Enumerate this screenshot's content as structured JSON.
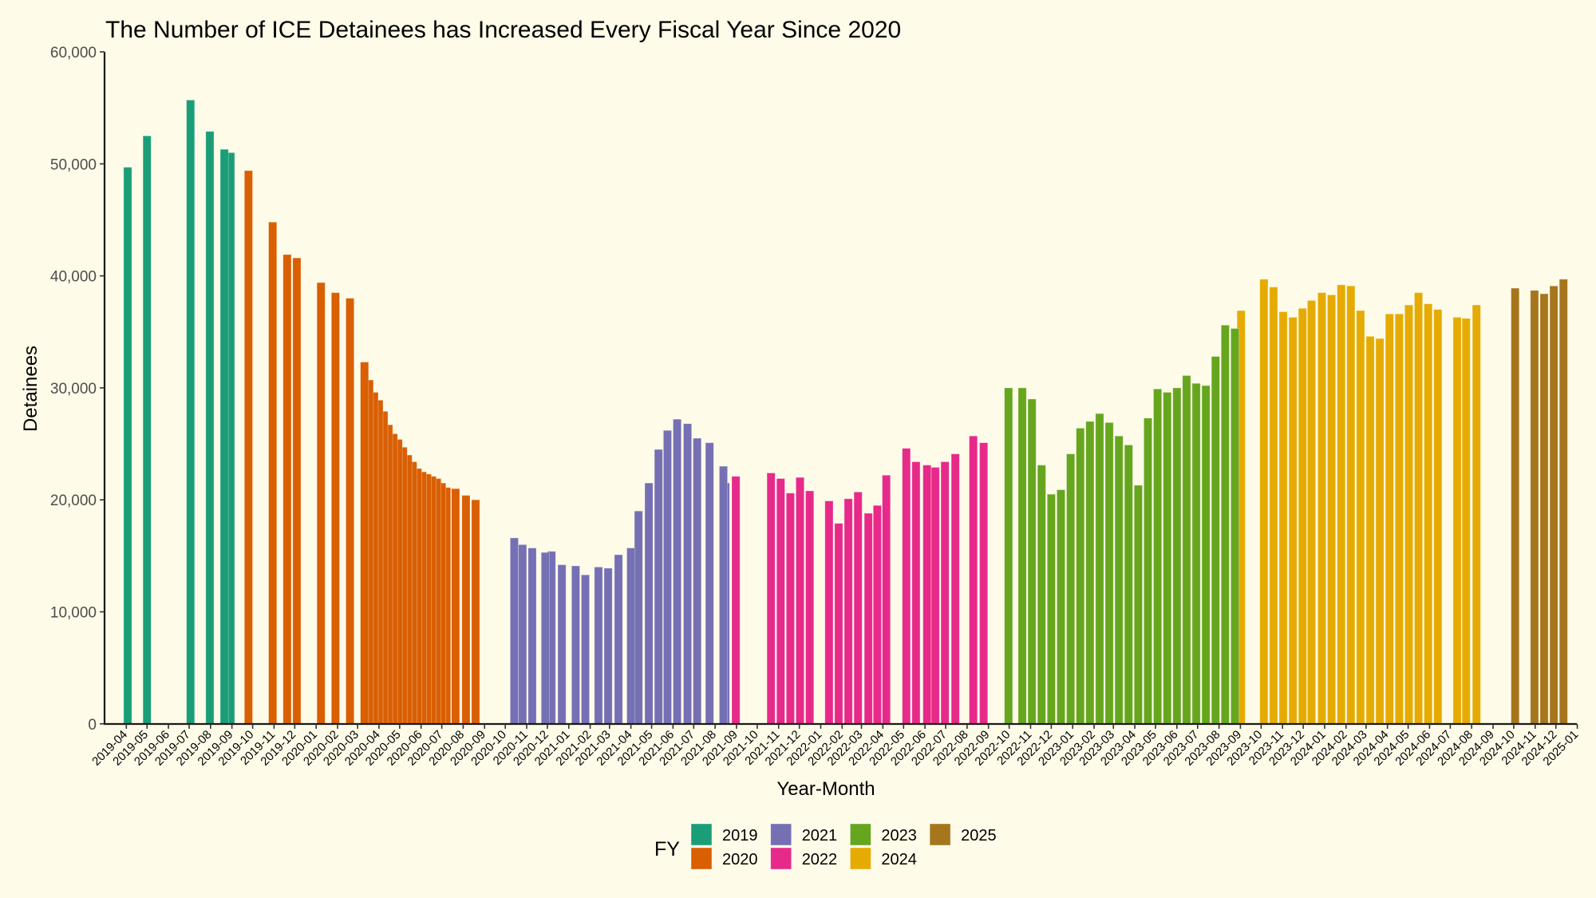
{
  "chart_data": {
    "type": "bar",
    "title": "The Number of ICE Detainees has Increased Every Fiscal Year Since 2020",
    "xlabel": "Year-Month",
    "ylabel": "Detainees",
    "ylim": [
      0,
      60000
    ],
    "yticks": [
      0,
      10000,
      20000,
      30000,
      40000,
      50000,
      60000
    ],
    "ytick_labels": [
      "0",
      "10,000",
      "20,000",
      "30,000",
      "40,000",
      "50,000",
      "60,000"
    ],
    "xlim": [
      "2019-03-02",
      "2025-01-01"
    ],
    "xtick_labels": [
      "2019-04",
      "2019-05",
      "2019-06",
      "2019-07",
      "2019-08",
      "2019-09",
      "2019-10",
      "2019-11",
      "2019-12",
      "2020-01",
      "2020-02",
      "2020-03",
      "2020-04",
      "2020-05",
      "2020-06",
      "2020-07",
      "2020-08",
      "2020-09",
      "2020-10",
      "2020-11",
      "2020-12",
      "2021-01",
      "2021-02",
      "2021-03",
      "2021-04",
      "2021-05",
      "2021-06",
      "2021-07",
      "2021-08",
      "2021-09",
      "2021-10",
      "2021-11",
      "2021-12",
      "2022-01",
      "2022-02",
      "2022-03",
      "2022-04",
      "2022-05",
      "2022-06",
      "2022-07",
      "2022-08",
      "2022-09",
      "2022-10",
      "2022-11",
      "2022-12",
      "2023-01",
      "2023-02",
      "2023-03",
      "2023-04",
      "2023-05",
      "2023-06",
      "2023-07",
      "2023-08",
      "2023-09",
      "2023-10",
      "2023-11",
      "2023-12",
      "2024-01",
      "2024-02",
      "2024-03",
      "2024-04",
      "2024-05",
      "2024-06",
      "2024-07",
      "2024-08",
      "2024-09",
      "2024-10",
      "2024-11",
      "2024-12",
      "2025-01"
    ],
    "grid": false,
    "legend": {
      "title": "FY",
      "position": "bottom",
      "entries": [
        {
          "label": "2019",
          "color": "#1B9E77"
        },
        {
          "label": "2020",
          "color": "#D95F02"
        },
        {
          "label": "2021",
          "color": "#7570B3"
        },
        {
          "label": "2022",
          "color": "#E7298A"
        },
        {
          "label": "2023",
          "color": "#66A61E"
        },
        {
          "label": "2024",
          "color": "#E6AB02"
        },
        {
          "label": "2025",
          "color": "#A6761D"
        }
      ]
    },
    "series": [
      {
        "name": "2019",
        "points": [
          [
            "2019-04-03",
            49700
          ],
          [
            "2019-05-01",
            52500
          ],
          [
            "2019-07-03",
            55700
          ],
          [
            "2019-07-31",
            52900
          ],
          [
            "2019-08-21",
            51300
          ],
          [
            "2019-08-30",
            51000
          ]
        ]
      },
      {
        "name": "2020",
        "points": [
          [
            "2019-09-25",
            49400
          ],
          [
            "2019-10-30",
            44800
          ],
          [
            "2019-11-20",
            41900
          ],
          [
            "2019-12-04",
            41600
          ],
          [
            "2020-01-08",
            39400
          ],
          [
            "2020-01-29",
            38500
          ],
          [
            "2020-02-19",
            38000
          ],
          [
            "2020-03-11",
            32300
          ],
          [
            "2020-03-18",
            30700
          ],
          [
            "2020-03-25",
            29600
          ],
          [
            "2020-04-01",
            28900
          ],
          [
            "2020-04-08",
            27900
          ],
          [
            "2020-04-15",
            26700
          ],
          [
            "2020-04-22",
            25900
          ],
          [
            "2020-04-29",
            25400
          ],
          [
            "2020-05-06",
            24700
          ],
          [
            "2020-05-13",
            24000
          ],
          [
            "2020-05-20",
            23400
          ],
          [
            "2020-05-27",
            22800
          ],
          [
            "2020-06-03",
            22500
          ],
          [
            "2020-06-10",
            22300
          ],
          [
            "2020-06-17",
            22100
          ],
          [
            "2020-06-24",
            21900
          ],
          [
            "2020-07-01",
            21500
          ],
          [
            "2020-07-08",
            21100
          ],
          [
            "2020-07-21",
            21000
          ],
          [
            "2020-08-05",
            20400
          ],
          [
            "2020-08-19",
            20000
          ]
        ]
      },
      {
        "name": "2021",
        "points": [
          [
            "2020-10-14",
            16600
          ],
          [
            "2020-10-26",
            16000
          ],
          [
            "2020-11-09",
            15700
          ],
          [
            "2020-11-28",
            15300
          ],
          [
            "2020-12-07",
            15400
          ],
          [
            "2020-12-22",
            14200
          ],
          [
            "2021-01-11",
            14100
          ],
          [
            "2021-01-25",
            13300
          ],
          [
            "2021-02-13",
            14000
          ],
          [
            "2021-02-27",
            13900
          ],
          [
            "2021-03-14",
            15100
          ],
          [
            "2021-04-01",
            15700
          ],
          [
            "2021-04-12",
            19000
          ],
          [
            "2021-04-27",
            21500
          ],
          [
            "2021-05-11",
            24500
          ],
          [
            "2021-05-24",
            26200
          ],
          [
            "2021-06-07",
            27200
          ],
          [
            "2021-06-22",
            26800
          ],
          [
            "2021-07-06",
            25500
          ],
          [
            "2021-07-24",
            25100
          ],
          [
            "2021-08-13",
            23000
          ],
          [
            "2021-08-16",
            21500
          ]
        ]
      },
      {
        "name": "2022",
        "points": [
          [
            "2021-08-31",
            22100
          ],
          [
            "2021-10-21",
            22400
          ],
          [
            "2021-11-04",
            21900
          ],
          [
            "2021-11-18",
            20600
          ],
          [
            "2021-12-02",
            22000
          ],
          [
            "2021-12-16",
            20800
          ],
          [
            "2022-01-13",
            19900
          ],
          [
            "2022-01-27",
            17900
          ],
          [
            "2022-02-10",
            20100
          ],
          [
            "2022-02-24",
            20700
          ],
          [
            "2022-03-11",
            18800
          ],
          [
            "2022-03-24",
            19500
          ],
          [
            "2022-04-06",
            22200
          ],
          [
            "2022-05-05",
            24600
          ],
          [
            "2022-05-19",
            23400
          ],
          [
            "2022-06-04",
            23100
          ],
          [
            "2022-06-16",
            22900
          ],
          [
            "2022-06-30",
            23400
          ],
          [
            "2022-07-15",
            24100
          ],
          [
            "2022-08-10",
            25700
          ],
          [
            "2022-08-25",
            25100
          ]
        ]
      },
      {
        "name": "2023",
        "points": [
          [
            "2022-09-30",
            30000
          ],
          [
            "2022-10-20",
            30000
          ],
          [
            "2022-11-03",
            29000
          ],
          [
            "2022-11-17",
            23100
          ],
          [
            "2022-12-01",
            20500
          ],
          [
            "2022-12-15",
            20900
          ],
          [
            "2022-12-29",
            24100
          ],
          [
            "2023-01-12",
            26400
          ],
          [
            "2023-01-26",
            27000
          ],
          [
            "2023-02-09",
            27700
          ],
          [
            "2023-02-23",
            26900
          ],
          [
            "2023-03-09",
            25700
          ],
          [
            "2023-03-23",
            24900
          ],
          [
            "2023-04-06",
            21300
          ],
          [
            "2023-04-20",
            27300
          ],
          [
            "2023-05-04",
            29900
          ],
          [
            "2023-05-18",
            29600
          ],
          [
            "2023-06-01",
            30000
          ],
          [
            "2023-06-15",
            31100
          ],
          [
            "2023-06-29",
            30400
          ],
          [
            "2023-07-13",
            30200
          ],
          [
            "2023-07-27",
            32800
          ],
          [
            "2023-08-10",
            35600
          ],
          [
            "2023-08-24",
            35300
          ]
        ]
      },
      {
        "name": "2024",
        "points": [
          [
            "2023-09-02",
            36900
          ],
          [
            "2023-10-05",
            39700
          ],
          [
            "2023-10-19",
            39000
          ],
          [
            "2023-11-02",
            36800
          ],
          [
            "2023-11-16",
            36300
          ],
          [
            "2023-11-30",
            37100
          ],
          [
            "2023-12-13",
            37800
          ],
          [
            "2023-12-28",
            38500
          ],
          [
            "2024-01-11",
            38300
          ],
          [
            "2024-01-25",
            39200
          ],
          [
            "2024-02-08",
            39100
          ],
          [
            "2024-02-22",
            36900
          ],
          [
            "2024-03-07",
            34600
          ],
          [
            "2024-03-21",
            34400
          ],
          [
            "2024-04-04",
            36600
          ],
          [
            "2024-04-18",
            36600
          ],
          [
            "2024-05-02",
            37400
          ],
          [
            "2024-05-16",
            38500
          ],
          [
            "2024-05-30",
            37500
          ],
          [
            "2024-06-13",
            37000
          ],
          [
            "2024-07-11",
            36300
          ],
          [
            "2024-07-24",
            36200
          ],
          [
            "2024-08-08",
            37400
          ]
        ]
      },
      {
        "name": "2025",
        "points": [
          [
            "2024-10-03",
            38900
          ],
          [
            "2024-10-31",
            38700
          ],
          [
            "2024-11-14",
            38400
          ],
          [
            "2024-11-28",
            39100
          ],
          [
            "2024-12-12",
            39700
          ]
        ]
      }
    ]
  }
}
